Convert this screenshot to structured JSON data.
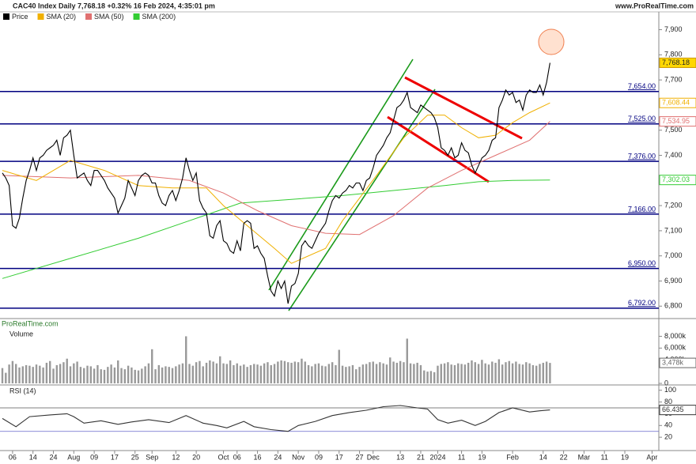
{
  "chart_data": [
    {
      "type": "line",
      "title": "CAC40 Index Daily 7,768.18 +0.32% 16 Feb 2024, 4:35:01 pm",
      "source": "www.ProRealTime.com",
      "watermark": "ProRealTime.com",
      "xlim": [
        -0.7,
        193
      ],
      "ylim": [
        6760,
        7930
      ],
      "yticks": [
        {
          "value": 6800,
          "label": "6,800"
        },
        {
          "value": 6900,
          "label": "6,900"
        },
        {
          "value": 7000,
          "label": "7,000"
        },
        {
          "value": 7100,
          "label": "7,100"
        },
        {
          "value": 7200,
          "label": "7,200"
        },
        {
          "value": 7400,
          "label": "7,400"
        },
        {
          "value": 7500,
          "label": "7,500"
        },
        {
          "value": 7700,
          "label": "7,700"
        },
        {
          "value": 7800,
          "label": "7,800"
        },
        {
          "value": 7900,
          "label": "7,900"
        }
      ],
      "x": [
        0,
        1,
        2,
        3,
        4,
        5,
        6,
        7,
        8,
        9,
        10,
        11,
        12,
        13,
        14,
        15,
        16,
        17,
        18,
        19,
        20,
        21,
        22,
        23,
        24,
        25,
        26,
        27,
        28,
        29,
        30,
        31,
        32,
        33,
        34,
        35,
        36,
        37,
        38,
        39,
        40,
        41,
        42,
        43,
        44,
        45,
        46,
        47,
        48,
        49,
        50,
        51,
        52,
        53,
        54,
        55,
        56,
        57,
        58,
        59,
        60,
        61,
        62,
        63,
        64,
        65,
        66,
        67,
        68,
        69,
        70,
        71,
        72,
        73,
        74,
        75,
        76,
        77,
        78,
        79,
        80,
        81,
        82,
        83,
        84,
        85,
        86,
        87,
        88,
        89,
        90,
        91,
        92,
        93,
        94,
        95,
        96,
        97,
        98,
        99,
        100,
        101,
        102,
        103,
        104,
        105,
        106,
        107,
        108,
        109,
        110,
        111,
        112,
        113,
        114,
        115,
        116,
        117,
        118,
        119,
        120,
        121,
        122,
        123,
        124,
        125,
        126,
        127,
        128,
        129,
        130,
        131,
        132,
        133,
        134,
        135,
        136,
        137,
        138,
        139,
        140,
        141,
        142,
        143,
        144,
        145,
        146,
        147,
        148,
        149,
        150,
        151,
        152,
        153,
        154,
        155,
        156,
        157,
        158,
        159,
        160,
        161
      ],
      "series": [
        {
          "name": "Price",
          "color": "#000000",
          "last_value_label": "7,768.18",
          "values": [
            7330,
            7310,
            7280,
            7120,
            7110,
            7150,
            7230,
            7300,
            7340,
            7390,
            7340,
            7390,
            7400,
            7420,
            7430,
            7440,
            7460,
            7400,
            7470,
            7480,
            7500,
            7400,
            7310,
            7320,
            7330,
            7300,
            7280,
            7340,
            7340,
            7320,
            7300,
            7270,
            7250,
            7230,
            7170,
            7200,
            7230,
            7300,
            7270,
            7240,
            7300,
            7320,
            7330,
            7320,
            7290,
            7290,
            7240,
            7210,
            7200,
            7240,
            7260,
            7220,
            7260,
            7310,
            7390,
            7340,
            7300,
            7330,
            7220,
            7190,
            7170,
            7080,
            7070,
            7120,
            7140,
            7060,
            7050,
            7020,
            7010,
            7060,
            7020,
            7130,
            7140,
            7130,
            7030,
            7040,
            7010,
            6990,
            6920,
            6860,
            6840,
            6900,
            6870,
            6900,
            6810,
            6880,
            6890,
            6930,
            7040,
            7060,
            7040,
            7030,
            7060,
            7090,
            7110,
            7130,
            7180,
            7220,
            7240,
            7230,
            7250,
            7260,
            7280,
            7270,
            7290,
            7290,
            7260,
            7300,
            7310,
            7350,
            7400,
            7420,
            7440,
            7470,
            7490,
            7540,
            7590,
            7600,
            7620,
            7650,
            7590,
            7580,
            7570,
            7600,
            7590,
            7580,
            7570,
            7550,
            7510,
            7430,
            7420,
            7400,
            7430,
            7390,
            7400,
            7450,
            7420,
            7410,
            7360,
            7330,
            7360,
            7390,
            7400,
            7420,
            7460,
            7470,
            7590,
            7620,
            7660,
            7640,
            7650,
            7610,
            7620,
            7580,
            7640,
            7660,
            7650,
            7650,
            7680,
            7640,
            7690,
            7768.18
          ]
        },
        {
          "name": "SMA (20)",
          "color": "#f0b000",
          "last_value_label": "7,608.44",
          "x": [
            0,
            10,
            20,
            30,
            40,
            50,
            60,
            65,
            72,
            80,
            85,
            95,
            100,
            105,
            110,
            118,
            125,
            130,
            135,
            140,
            145,
            150,
            155,
            161
          ],
          "values": [
            7340,
            7300,
            7380,
            7340,
            7280,
            7270,
            7270,
            7200,
            7120,
            7030,
            6970,
            7030,
            7140,
            7230,
            7320,
            7470,
            7560,
            7560,
            7510,
            7470,
            7480,
            7530,
            7570,
            7608.44
          ]
        },
        {
          "name": "SMA (50)",
          "color": "#e07070",
          "last_value_label": "7,534.95",
          "x": [
            0,
            20,
            40,
            55,
            65,
            75,
            85,
            95,
            105,
            115,
            125,
            135,
            145,
            155,
            161
          ],
          "values": [
            7320,
            7310,
            7320,
            7300,
            7250,
            7180,
            7120,
            7090,
            7085,
            7160,
            7270,
            7340,
            7400,
            7460,
            7534.95
          ]
        },
        {
          "name": "SMA (200)",
          "color": "#33cc33",
          "last_value_label": "7,302.03",
          "x": [
            0,
            20,
            40,
            55,
            70,
            85,
            100,
            115,
            130,
            140,
            150,
            161
          ],
          "values": [
            6910,
            6990,
            7070,
            7140,
            7210,
            7225,
            7240,
            7260,
            7280,
            7295,
            7300,
            7302.03
          ]
        }
      ],
      "levels": {
        "color": "#000080",
        "values": [
          7654,
          7525,
          7376,
          7166,
          6950,
          6792
        ],
        "labels": [
          "7,654.00",
          "7,525.00",
          "7,376.00",
          "7,166.00",
          "6,950.00",
          "6,792.00"
        ]
      }
    },
    {
      "type": "bar",
      "title": "Volume",
      "color": "#999999",
      "ylim": [
        0,
        9000
      ],
      "yticks": [
        {
          "value": 8000,
          "label": "8,000k"
        },
        {
          "value": 6000,
          "label": "6,000k"
        },
        {
          "value": 4000,
          "label": "4,000k"
        },
        0
      ],
      "last_value_label": "3,478k",
      "values": [
        2600,
        1800,
        3200,
        3800,
        3300,
        2700,
        2900,
        3100,
        3000,
        2800,
        3200,
        3000,
        2700,
        3500,
        3800,
        2500,
        3100,
        3300,
        3600,
        4200,
        2900,
        3400,
        3700,
        2800,
        2600,
        3000,
        2900,
        2500,
        3100,
        2400,
        2300,
        2800,
        3200,
        2700,
        3900,
        2600,
        2400,
        3000,
        2700,
        2300,
        2200,
        2500,
        2900,
        3400,
        5800,
        2400,
        3100,
        2700,
        2900,
        2800,
        2600,
        2900,
        3200,
        3400,
        8000,
        3300,
        3000,
        3600,
        3800,
        2900,
        3500,
        3900,
        3700,
        3400,
        4600,
        3400,
        3300,
        3900,
        3100,
        3400,
        3000,
        3200,
        2800,
        3100,
        3300,
        3200,
        3000,
        3400,
        3600,
        3100,
        3300,
        3700,
        3900,
        3800,
        3600,
        3500,
        3700,
        3600,
        4200,
        3700,
        3100,
        2900,
        3300,
        3400,
        3000,
        2900,
        3300,
        3600,
        3100,
        5700,
        3000,
        2800,
        2900,
        3100,
        2400,
        2800,
        3200,
        3300,
        3600,
        3700,
        3300,
        3600,
        3400,
        3200,
        4400,
        3700,
        3500,
        3800,
        3600,
        7600,
        3400,
        3300,
        3500,
        3100,
        2200,
        2000,
        2100,
        1900,
        3000,
        3300,
        3400,
        3600,
        3200,
        3100,
        3400,
        3300,
        3200,
        3500,
        3900,
        3600,
        3300,
        4000,
        3400,
        3200,
        3700,
        3500,
        4100,
        3200,
        3600,
        3800,
        3400,
        3700,
        3300,
        3200,
        3600,
        3400,
        3100,
        3000,
        3300,
        3500,
        3700,
        3478
      ]
    },
    {
      "type": "line",
      "title": "RSI (14)",
      "ylim": [
        0,
        105
      ],
      "yticks": [
        100,
        80,
        60,
        40,
        20
      ],
      "guide_lines": [
        70,
        30
      ],
      "last_value_label": "66.435",
      "xlim": [
        -0.7,
        193
      ],
      "xticks": [
        {
          "value": 3,
          "label": "06"
        },
        {
          "value": 9,
          "label": "14"
        },
        {
          "value": 15,
          "label": "24"
        },
        {
          "value": 21,
          "label": "Aug"
        },
        {
          "value": 27,
          "label": "09"
        },
        {
          "value": 33,
          "label": "17"
        },
        {
          "value": 39,
          "label": "25"
        },
        {
          "value": 44,
          "label": "Sep"
        },
        {
          "value": 51,
          "label": "12"
        },
        {
          "value": 57,
          "label": "20"
        },
        {
          "value": 65,
          "label": "Oct"
        },
        {
          "value": 69,
          "label": "06"
        },
        {
          "value": 75,
          "label": "16"
        },
        {
          "value": 81,
          "label": "24"
        },
        {
          "value": 87,
          "label": "Nov"
        },
        {
          "value": 93,
          "label": "09"
        },
        {
          "value": 99,
          "label": "17"
        },
        {
          "value": 105,
          "label": "27"
        },
        {
          "value": 109,
          "label": "Dec"
        },
        {
          "value": 117,
          "label": "13"
        },
        {
          "value": 123,
          "label": "21"
        },
        {
          "value": 128,
          "label": "2024"
        },
        {
          "value": 135,
          "label": "11"
        },
        {
          "value": 141,
          "label": "19"
        },
        {
          "value": 150,
          "label": "Feb"
        },
        {
          "value": 159,
          "label": "14"
        },
        {
          "value": 165,
          "label": "22"
        },
        {
          "value": 171,
          "label": "Mar"
        },
        {
          "value": 177,
          "label": "11"
        },
        {
          "value": 183,
          "label": "19"
        },
        {
          "value": 191,
          "label": "Apr"
        }
      ],
      "series": [
        {
          "color": "#333333",
          "x": [
            0,
            4,
            8,
            14,
            19,
            21,
            24,
            29,
            34,
            38,
            43,
            49,
            54,
            59,
            63,
            66,
            71,
            74,
            79,
            84,
            87,
            92,
            97,
            102,
            107,
            112,
            117,
            122,
            125,
            128,
            131,
            135,
            139,
            142,
            146,
            150,
            155,
            158,
            161
          ],
          "values": [
            52,
            38,
            55,
            58,
            60,
            55,
            44,
            48,
            42,
            46,
            50,
            45,
            57,
            44,
            40,
            36,
            47,
            38,
            33,
            30,
            40,
            47,
            57,
            62,
            66,
            72,
            74,
            70,
            68,
            50,
            44,
            49,
            40,
            47,
            62,
            70,
            63,
            65,
            66.435
          ]
        }
      ]
    }
  ]
}
